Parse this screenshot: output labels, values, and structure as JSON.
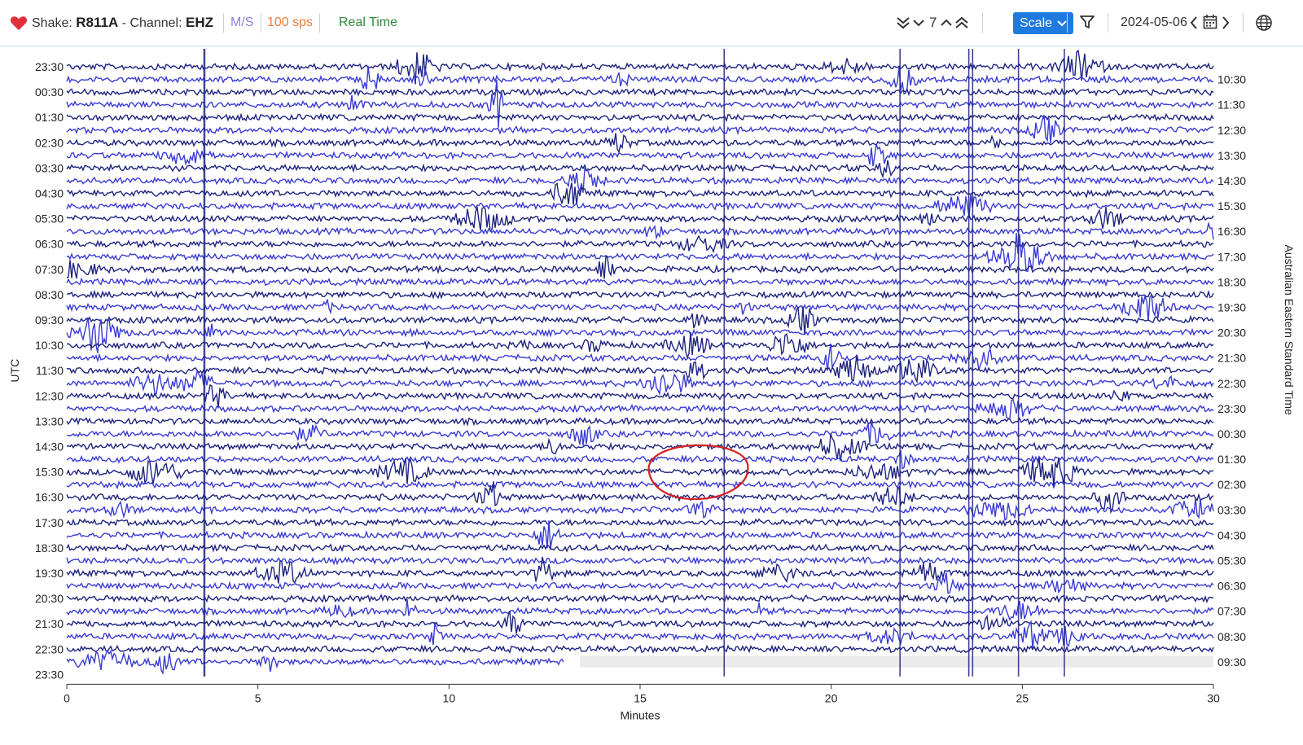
{
  "header": {
    "shake_label": "Shake:",
    "station": "R811A",
    "channel_label": "- Channel:",
    "channel": "EHZ",
    "units": "M/S",
    "sample_rate": "100 sps",
    "mode": "Real Time",
    "zoom_level": "7",
    "scale_label": "Scale",
    "date": "2024-05-06"
  },
  "icons": [
    "heart-icon",
    "double-chevron-down-icon",
    "chevron-down-icon",
    "chevron-up-icon",
    "double-chevron-up-icon",
    "filter-icon",
    "chevron-left-icon",
    "calendar-icon",
    "chevron-right-icon",
    "globe-icon"
  ],
  "colors": {
    "trace_dark": "#1e2380",
    "trace_light": "#3a3bd4",
    "annotation": "#d62020",
    "accent": "#1f7ae0",
    "heart": "#e0303a",
    "nodata": "#ebebeb"
  },
  "chart_data": {
    "type": "helicorder",
    "xlabel": "Minutes",
    "ylabel_left": "UTC",
    "ylabel_right": "Australian Eastern Standard Time",
    "xlim": [
      0,
      30
    ],
    "x_ticks": [
      0,
      5,
      10,
      15,
      20,
      25,
      30
    ],
    "rows_per_hour": 2,
    "left_ticks": [
      "23:30",
      "00:30",
      "01:30",
      "02:30",
      "03:30",
      "04:30",
      "05:30",
      "06:30",
      "07:30",
      "08:30",
      "09:30",
      "10:30",
      "11:30",
      "12:30",
      "13:30",
      "14:30",
      "15:30",
      "16:30",
      "17:30",
      "18:30",
      "19:30",
      "20:30",
      "21:30",
      "22:30",
      "23:30"
    ],
    "right_ticks": [
      "10:30",
      "11:30",
      "12:30",
      "13:30",
      "14:30",
      "15:30",
      "16:30",
      "17:30",
      "18:30",
      "19:30",
      "20:30",
      "21:30",
      "22:30",
      "23:30",
      "00:30",
      "01:30",
      "02:30",
      "03:30",
      "04:30",
      "05:30",
      "06:30",
      "07:30",
      "08:30",
      "09:30"
    ],
    "last_row_end_minute": 13,
    "annotation": {
      "shape": "ellipse",
      "center_minute": 16.5,
      "center_utc": "15:30"
    }
  }
}
